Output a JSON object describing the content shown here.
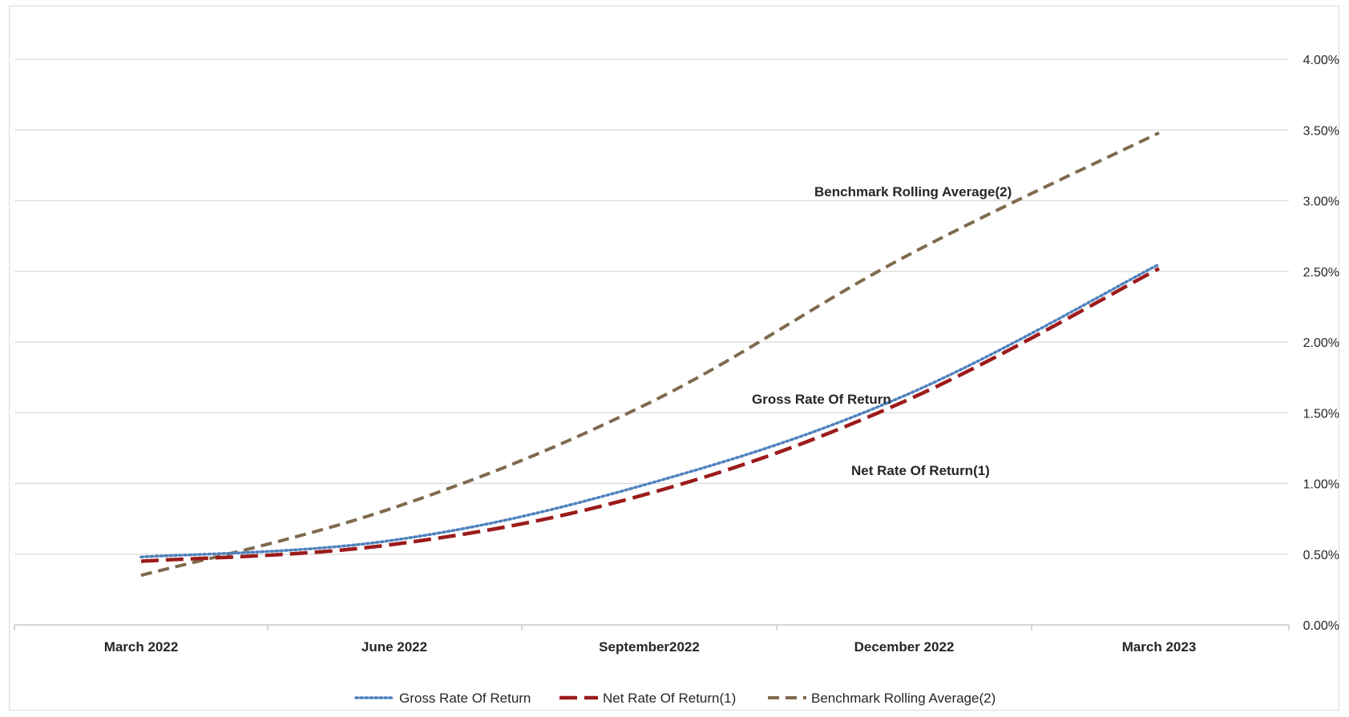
{
  "chart_data": {
    "type": "line",
    "categories": [
      "March 2022",
      "June 2022",
      "September2022",
      "December 2022",
      "March 2023"
    ],
    "y_ticks": [
      "0.00%",
      "0.50%",
      "1.00%",
      "1.50%",
      "2.00%",
      "2.50%",
      "3.00%",
      "3.50%",
      "4.00%"
    ],
    "ylim": [
      0,
      4.0
    ],
    "y_axis_position": "right",
    "grid": true,
    "legend_position": "bottom",
    "series": [
      {
        "name": "Gross Rate Of Return",
        "values": [
          0.48,
          0.6,
          1.0,
          1.62,
          2.55
        ],
        "color": "#4f81bd",
        "style": "dotted",
        "annotation": "Gross Rate Of Return"
      },
      {
        "name": "Net Rate Of Return(1)",
        "values": [
          0.45,
          0.57,
          0.93,
          1.58,
          2.52
        ],
        "color": "#9c1b1b",
        "style": "long-dash",
        "annotation": "Net Rate Of Return(1)"
      },
      {
        "name": "Benchmark Rolling Average(2)",
        "values": [
          0.35,
          0.83,
          1.57,
          2.6,
          3.48
        ],
        "color": "#7f6a4f",
        "style": "dash",
        "annotation": "Benchmark Rolling Average(2)"
      }
    ]
  }
}
